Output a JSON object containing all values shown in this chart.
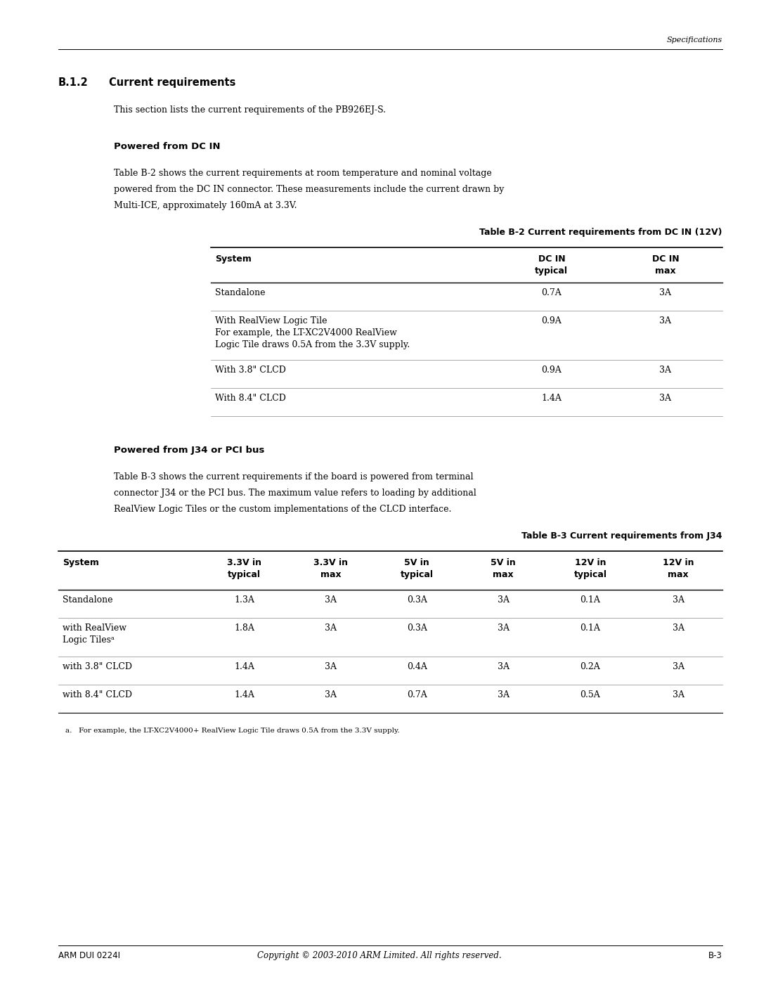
{
  "bg_color": "#ffffff",
  "page_width": 10.8,
  "page_height": 13.97,
  "header_italic": "Specifications",
  "section_title": "B.1.2",
  "section_title2": "Current requirements",
  "intro_text": "This section lists the current requirements of the PB926EJ-S.",
  "subsection1": "Powered from DC IN",
  "para1_line1": "Table B-2 shows the current requirements at room temperature and nominal voltage",
  "para1_line2": "powered from the DC IN connector. These measurements include the current drawn by",
  "para1_line3": "Multi-ICE, approximately 160mA at 3.3V.",
  "table1_title": "Table B-2 Current requirements from DC IN (12V)",
  "table1_h0": "System",
  "table1_h1": "DC IN\ntypical",
  "table1_h2": "DC IN\nmax",
  "table1_rows": [
    [
      "Standalone",
      "0.7A",
      "3A"
    ],
    [
      "With RealView Logic Tile\nFor example, the LT-XC2V4000 RealView\nLogic Tile draws 0.5A from the 3.3V supply.",
      "0.9A",
      "3A"
    ],
    [
      "With 3.8\" CLCD",
      "0.9A",
      "3A"
    ],
    [
      "With 8.4\" CLCD",
      "1.4A",
      "3A"
    ]
  ],
  "subsection2": "Powered from J34 or PCI bus",
  "para2_line1": "Table B-3 shows the current requirements if the board is powered from terminal",
  "para2_line2": "connector J34 or the PCI bus. The maximum value refers to loading by additional",
  "para2_line3": "RealView Logic Tiles or the custom implementations of the CLCD interface.",
  "table2_title": "Table B-3 Current requirements from J34",
  "table2_headers": [
    "System",
    "3.3V in\ntypical",
    "3.3V in\nmax",
    "5V in\ntypical",
    "5V in\nmax",
    "12V in\ntypical",
    "12V in\nmax"
  ],
  "table2_rows": [
    [
      "Standalone",
      "1.3A",
      "3A",
      "0.3A",
      "3A",
      "0.1A",
      "3A"
    ],
    [
      "with RealView\nLogic Tilesᵃ",
      "1.8A",
      "3A",
      "0.3A",
      "3A",
      "0.1A",
      "3A"
    ],
    [
      "with 3.8\" CLCD",
      "1.4A",
      "3A",
      "0.4A",
      "3A",
      "0.2A",
      "3A"
    ],
    [
      "with 8.4\" CLCD",
      "1.4A",
      "3A",
      "0.7A",
      "3A",
      "0.5A",
      "3A"
    ]
  ],
  "footnote": "a.   For example, the LT-XC2V4000+ RealView Logic Tile draws 0.5A from the 3.3V supply.",
  "footer_left": "ARM DUI 0224I",
  "footer_center": "Copyright © 2003-2010 ARM Limited. All rights reserved.",
  "footer_right": "B-3"
}
